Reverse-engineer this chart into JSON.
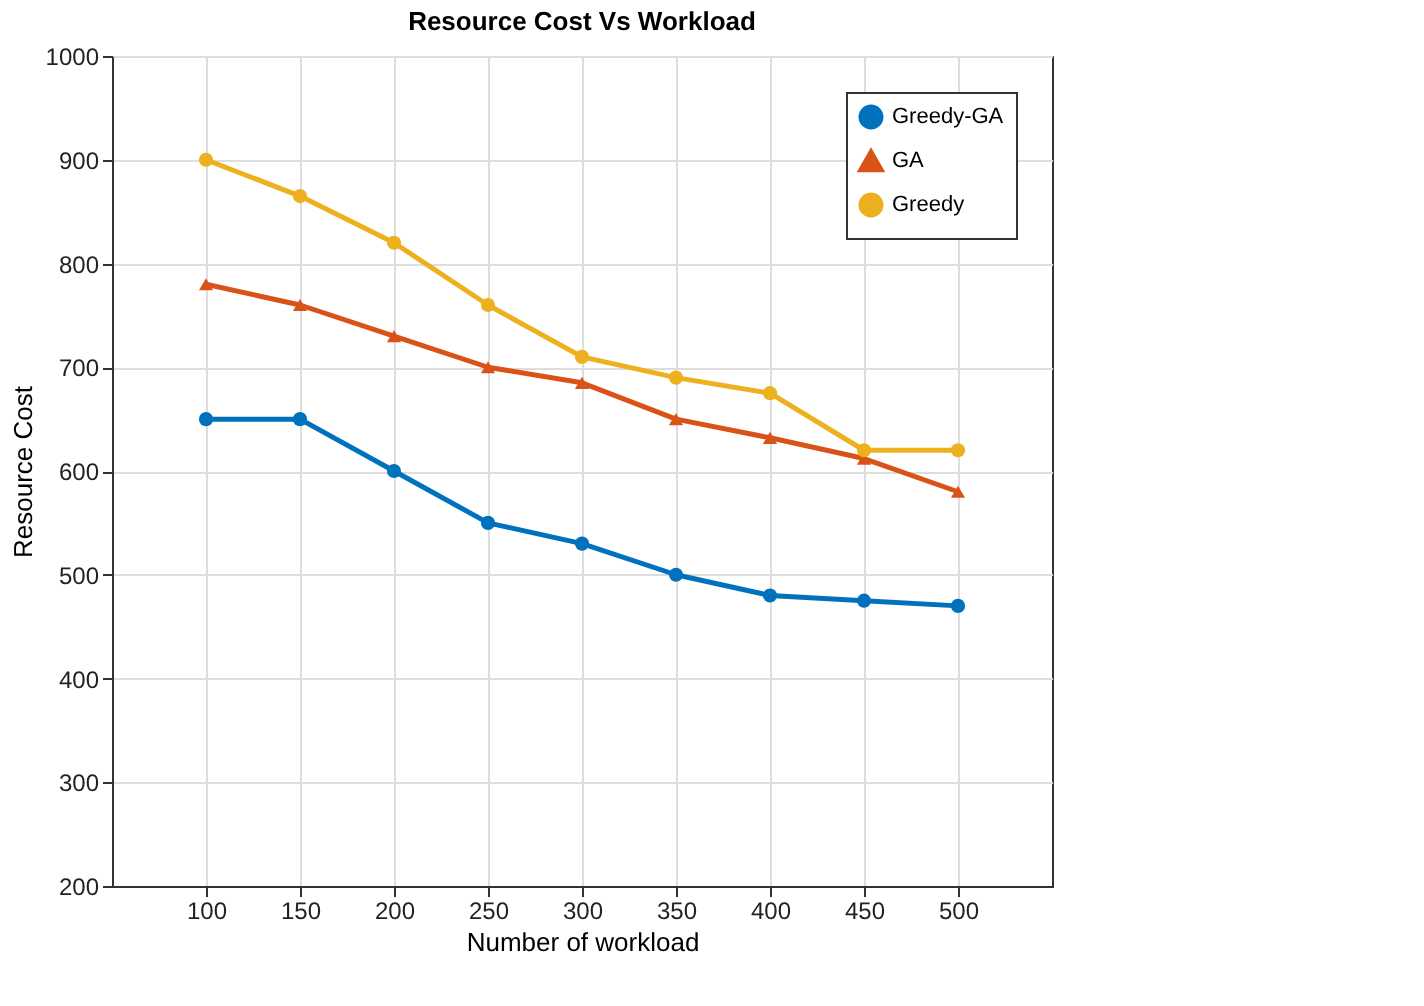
{
  "chart_data": {
    "type": "line",
    "title": "Resource Cost Vs Workload",
    "xlabel": "Number of workload",
    "ylabel": "Resource Cost",
    "x": [
      100,
      150,
      200,
      250,
      300,
      350,
      400,
      450,
      500
    ],
    "series": [
      {
        "name": "Greedy-GA",
        "color": "#0072bd",
        "marker": "circle",
        "values": [
          650,
          650,
          600,
          550,
          530,
          500,
          480,
          475,
          470
        ]
      },
      {
        "name": "GA",
        "color": "#d95319",
        "marker": "triangle",
        "values": [
          780,
          760,
          730,
          700,
          685,
          650,
          632,
          612,
          580
        ]
      },
      {
        "name": "Greedy",
        "color": "#edb120",
        "marker": "circle",
        "values": [
          900,
          865,
          820,
          760,
          710,
          690,
          675,
          620,
          620
        ]
      }
    ],
    "xlim": [
      50,
      550
    ],
    "xticks": [
      100,
      150,
      200,
      250,
      300,
      350,
      400,
      450,
      500
    ],
    "ylim": [
      200,
      1000
    ],
    "yticks": [
      200,
      300,
      400,
      500,
      600,
      700,
      800,
      900,
      1000
    ],
    "grid": true,
    "legend": "top right",
    "line_style": "solid"
  }
}
